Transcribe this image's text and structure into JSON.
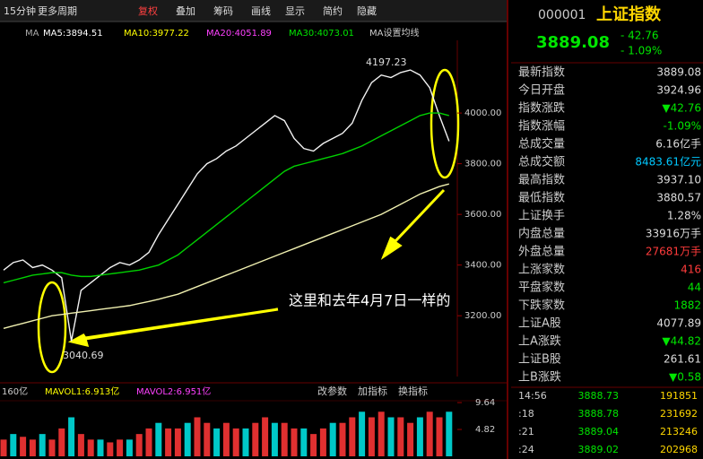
{
  "toolbar": [
    "15分钟",
    "更多周期",
    "复权",
    "叠加",
    "筹码",
    "画线",
    "显示",
    "简约",
    "隐藏"
  ],
  "header": {
    "code": "000001",
    "name": "上证指数",
    "price": "3889.08",
    "change": "- 42.76",
    "pct": "- 1.09%"
  },
  "ma_legend": [
    "MA",
    "MA5:3894.51",
    "MA10:3977.22",
    "MA20:4051.89",
    "MA30:4073.01",
    "MA设置均线"
  ],
  "vol_legend": [
    "160亿",
    "MAVOL1:6.913亿",
    "MAVOL2:6.951亿"
  ],
  "vol_buttons": [
    "改参数",
    "加指标",
    "换指标"
  ],
  "annotation": "这里和去年4月7日一样的",
  "high_label": "4197.23",
  "low_label": "3040.69",
  "stats": [
    [
      "最新指数",
      "3889.08"
    ],
    [
      "今日开盘",
      "3924.96"
    ],
    [
      "指数涨跌",
      "▼42.76"
    ],
    [
      "指数涨幅",
      "-1.09%"
    ],
    [
      "总成交量",
      "6.16亿手"
    ],
    [
      "总成交额",
      "8483.61亿元"
    ],
    [
      "最高指数",
      "3937.10"
    ],
    [
      "最低指数",
      "3880.57"
    ],
    [
      "上证换手",
      "1.28%"
    ],
    [
      "内盘总量",
      "33916万手"
    ],
    [
      "外盘总量",
      "27681万手"
    ],
    [
      "上涨家数",
      "416"
    ],
    [
      "平盘家数",
      "44"
    ],
    [
      "下跌家数",
      "1882"
    ],
    [
      "上证A股",
      "4077.89"
    ],
    [
      "上A涨跌",
      "▼44.82"
    ],
    [
      "上证B股",
      "261.61"
    ],
    [
      "上B涨跌",
      "▼0.58"
    ]
  ],
  "trades": [
    [
      "14:56",
      "3888.73",
      "191851"
    ],
    [
      ":18",
      "3888.78",
      "231692"
    ],
    [
      ":21",
      "3889.04",
      "213246"
    ],
    [
      ":24",
      "3889.02",
      "202968"
    ]
  ],
  "chart_data": {
    "type": "line",
    "ylim": [
      2960,
      4287
    ],
    "yticks": [
      {
        "value": 3200,
        "label": "3200.00"
      },
      {
        "value": 3400,
        "label": "3400.00"
      },
      {
        "value": 3600,
        "label": "3600.00"
      },
      {
        "value": 3800,
        "label": "3800.00"
      },
      {
        "value": 4000,
        "label": "4000.00"
      }
    ],
    "series": [
      {
        "color": "#f2f2f2",
        "values": [
          3380,
          3410,
          3420,
          3390,
          3400,
          3380,
          3350,
          3100,
          3300,
          3330,
          3360,
          3390,
          3410,
          3400,
          3420,
          3450,
          3520,
          3580,
          3640,
          3700,
          3760,
          3800,
          3820,
          3850,
          3870,
          3900,
          3930,
          3960,
          3990,
          3970,
          3900,
          3860,
          3850,
          3880,
          3900,
          3920,
          3960,
          4050,
          4120,
          4150,
          4140,
          4160,
          4170,
          4150,
          4100,
          3990,
          3889
        ]
      },
      {
        "color": "#00d000",
        "values": [
          3330,
          3340,
          3350,
          3360,
          3365,
          3370,
          3370,
          3360,
          3355,
          3355,
          3360,
          3365,
          3370,
          3375,
          3380,
          3390,
          3400,
          3420,
          3440,
          3470,
          3500,
          3530,
          3560,
          3590,
          3620,
          3650,
          3680,
          3710,
          3740,
          3770,
          3790,
          3800,
          3810,
          3820,
          3830,
          3840,
          3855,
          3870,
          3890,
          3910,
          3930,
          3950,
          3970,
          3990,
          4000,
          4000,
          3990
        ]
      },
      {
        "color": "#f0f0b0",
        "values": [
          3150,
          3160,
          3170,
          3180,
          3190,
          3200,
          3205,
          3210,
          3215,
          3220,
          3225,
          3230,
          3235,
          3240,
          3248,
          3256,
          3265,
          3275,
          3285,
          3300,
          3315,
          3330,
          3345,
          3360,
          3375,
          3390,
          3405,
          3420,
          3435,
          3450,
          3465,
          3480,
          3495,
          3510,
          3525,
          3540,
          3555,
          3570,
          3585,
          3600,
          3620,
          3640,
          3660,
          3680,
          3695,
          3710,
          3720
        ]
      }
    ],
    "volume": {
      "color": "#e03030",
      "values": [
        3,
        4,
        3.5,
        3,
        4,
        3,
        5,
        7,
        4,
        3,
        3,
        2.5,
        3,
        3,
        4,
        5,
        6,
        5,
        5,
        6,
        7,
        6,
        5,
        6,
        5,
        5,
        6,
        7,
        6,
        6,
        5,
        5,
        4,
        5,
        6,
        6,
        7,
        8,
        7,
        8,
        7,
        7,
        6,
        7,
        8,
        7,
        8
      ]
    },
    "y2lim": [
      0,
      11.1
    ],
    "y2ticks": [
      4.82,
      9.64
    ]
  }
}
